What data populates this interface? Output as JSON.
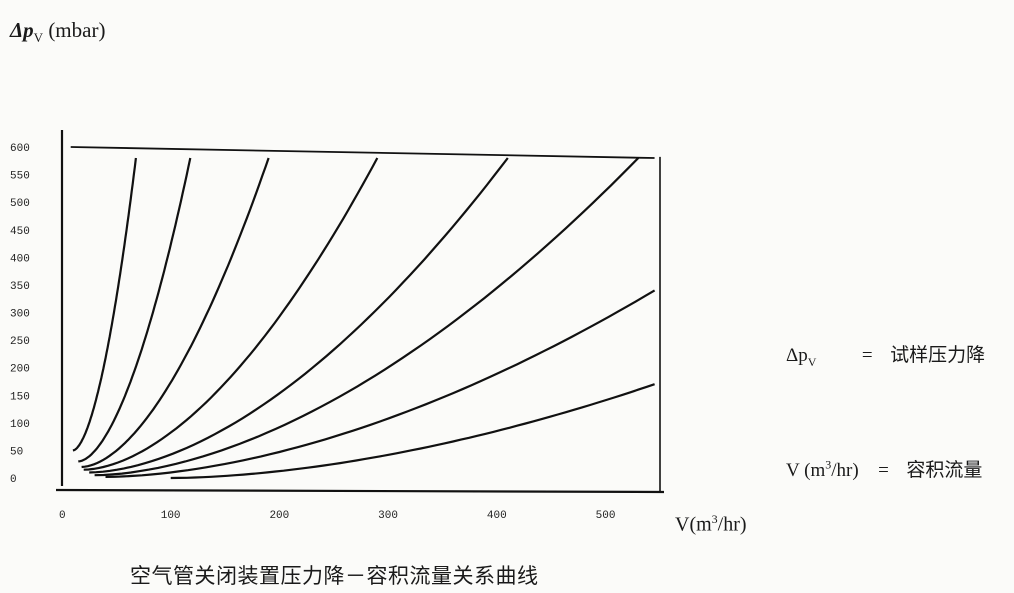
{
  "chart_data": {
    "type": "line",
    "ylabel_symbol": "Δp",
    "ylabel_sub": "V",
    "ylabel_unit": "(mbar)",
    "xlabel_prefix": "V(m",
    "xlabel_sup": "3",
    "xlabel_suffix": "/hr)",
    "caption": "空气管关闭装置压力降－容积流量关系曲线",
    "xlim": [
      0,
      550
    ],
    "ylim": [
      0,
      600
    ],
    "xticks": [
      "0",
      "100",
      "200",
      "300",
      "400",
      "500"
    ],
    "xtick_values": [
      0,
      100,
      200,
      300,
      400,
      500
    ],
    "yticks": [
      "600",
      "550",
      "500",
      "450",
      "400",
      "350",
      "300",
      "250",
      "200",
      "150",
      "100",
      "50",
      "0"
    ],
    "ytick_values": [
      600,
      550,
      500,
      450,
      400,
      350,
      300,
      250,
      200,
      150,
      100,
      50,
      0
    ],
    "limit_line": {
      "x": [
        8,
        545
      ],
      "y": [
        600,
        580
      ]
    },
    "series": [
      {
        "x": [
          10,
          68
        ],
        "y": [
          50,
          580
        ]
      },
      {
        "x": [
          15,
          118
        ],
        "y": [
          30,
          580
        ]
      },
      {
        "x": [
          18,
          190
        ],
        "y": [
          20,
          580
        ]
      },
      {
        "x": [
          20,
          290
        ],
        "y": [
          15,
          580
        ]
      },
      {
        "x": [
          25,
          410
        ],
        "y": [
          10,
          580
        ]
      },
      {
        "x": [
          30,
          530
        ],
        "y": [
          5,
          580
        ]
      },
      {
        "x": [
          40,
          545
        ],
        "y": [
          2,
          340
        ]
      },
      {
        "x": [
          100,
          545
        ],
        "y": [
          0,
          170
        ]
      }
    ],
    "grid": false
  },
  "legend": [
    {
      "symbol": "Δp",
      "sub": "V",
      "sup": "",
      "rest": "",
      "eq": "=",
      "desc": "试样压力降"
    },
    {
      "symbol": "V (m",
      "sub": "",
      "sup": "3",
      "rest": "/hr)",
      "eq": "=",
      "desc": "容积流量"
    }
  ]
}
